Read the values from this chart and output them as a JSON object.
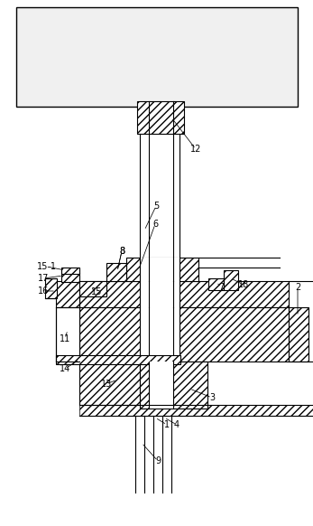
{
  "background_color": "#ffffff",
  "line_color": "#000000",
  "hatch_pattern": "////",
  "lw": 0.8,
  "label_fontsize": 7.0
}
